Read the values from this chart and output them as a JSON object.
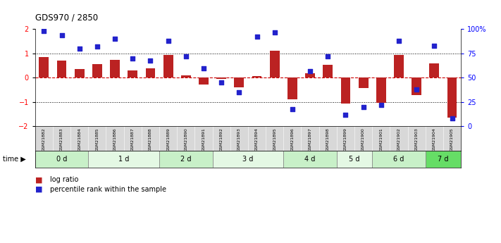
{
  "title": "GDS970 / 2850",
  "samples": [
    "GSM21882",
    "GSM21883",
    "GSM21884",
    "GSM21885",
    "GSM21886",
    "GSM21887",
    "GSM21888",
    "GSM21889",
    "GSM21890",
    "GSM21891",
    "GSM21892",
    "GSM21893",
    "GSM21894",
    "GSM21895",
    "GSM21896",
    "GSM21897",
    "GSM21898",
    "GSM21899",
    "GSM21900",
    "GSM21901",
    "GSM21902",
    "GSM21903",
    "GSM21904",
    "GSM21905"
  ],
  "log_ratio": [
    0.85,
    0.72,
    0.35,
    0.55,
    0.75,
    0.3,
    0.4,
    0.95,
    0.1,
    -0.28,
    -0.05,
    -0.38,
    0.08,
    1.1,
    -0.9,
    0.18,
    0.52,
    -1.05,
    -0.42,
    -1.02,
    0.95,
    -0.72,
    0.6,
    -1.65
  ],
  "percentile": [
    98,
    94,
    80,
    82,
    90,
    70,
    68,
    88,
    72,
    60,
    45,
    35,
    92,
    97,
    18,
    57,
    72,
    12,
    20,
    22,
    88,
    38,
    83,
    8
  ],
  "groups": [
    {
      "label": "0 d",
      "start": 0,
      "end": 3,
      "color": "#c8f0c8"
    },
    {
      "label": "1 d",
      "start": 3,
      "end": 7,
      "color": "#e4f8e4"
    },
    {
      "label": "2 d",
      "start": 7,
      "end": 10,
      "color": "#c8f0c8"
    },
    {
      "label": "3 d",
      "start": 10,
      "end": 14,
      "color": "#e4f8e4"
    },
    {
      "label": "4 d",
      "start": 14,
      "end": 17,
      "color": "#c8f0c8"
    },
    {
      "label": "5 d",
      "start": 17,
      "end": 19,
      "color": "#e4f8e4"
    },
    {
      "label": "6 d",
      "start": 19,
      "end": 22,
      "color": "#c8f0c8"
    },
    {
      "label": "7 d",
      "start": 22,
      "end": 24,
      "color": "#66dd66"
    }
  ],
  "bar_color": "#bb2222",
  "dot_color": "#2222cc",
  "ylim_left": [
    -2,
    2
  ],
  "ylim_right": [
    0,
    100
  ],
  "yticks_left": [
    -2,
    -1,
    0,
    1,
    2
  ],
  "yticks_right": [
    0,
    25,
    50,
    75,
    100
  ],
  "ytick_labels_right": [
    "0",
    "25",
    "50",
    "75",
    "100%"
  ],
  "dotline_y": [
    -1,
    1
  ],
  "bar_width": 0.55,
  "dot_size": 22
}
